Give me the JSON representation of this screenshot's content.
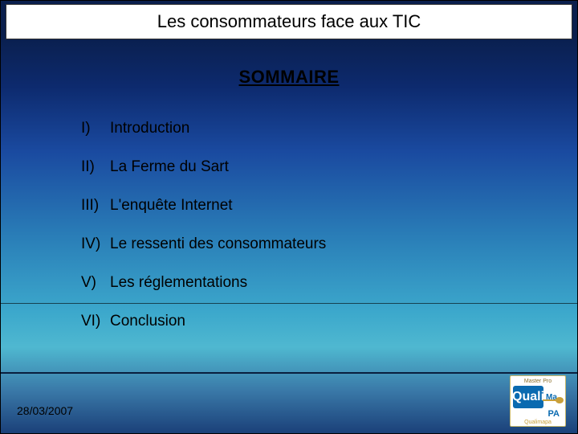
{
  "title": "Les consommateurs face aux TIC",
  "heading": "SOMMAIRE",
  "items": [
    {
      "num": "I)",
      "label": "Introduction"
    },
    {
      "num": "II)",
      "label": "La Ferme du Sart"
    },
    {
      "num": "III)",
      "label": "L'enquête Internet"
    },
    {
      "num": "IV)",
      "label": "Le ressenti des consommateurs"
    },
    {
      "num": "V)",
      "label": "Les réglementations"
    },
    {
      "num": "VI)",
      "label": "Conclusion"
    }
  ],
  "date": "28/03/2007",
  "logo": {
    "top": "Master Pro",
    "q": "Quali",
    "ma": "Ma",
    "pa": "PA",
    "bottom": "Qualimapa"
  },
  "colors": {
    "title_bg": "#ffffff",
    "text": "#000000",
    "logo_blue": "#0a6ab0",
    "logo_gold": "#c9a03a"
  }
}
